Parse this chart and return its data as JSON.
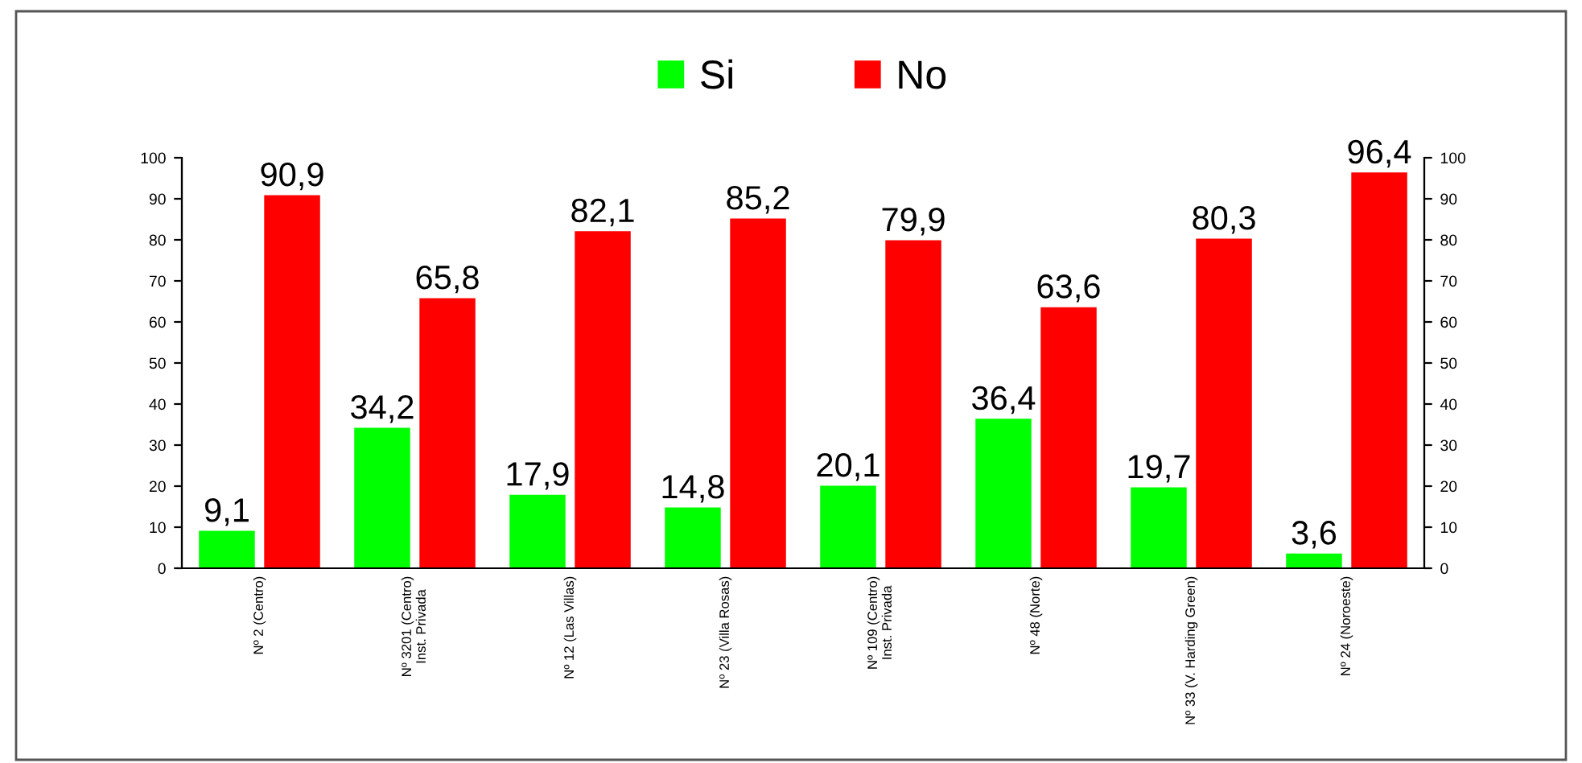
{
  "chart_data": {
    "type": "bar",
    "categories": [
      "Nº 2 (Centro)",
      "Nº 3201 (Centro)\nInst. Privada",
      "Nº 12 (Las Villas)",
      "Nº 23 (Villa Rosas)",
      "Nº 109 (Centro)\nInst. Privada",
      "Nº 48 (Norte)",
      "Nº 33 (V. Harding Green)",
      "Nº 24 (Noroeste)"
    ],
    "series": [
      {
        "name": "Si",
        "color": "#00ff00",
        "values": [
          9.1,
          34.2,
          17.9,
          14.8,
          20.1,
          36.4,
          19.7,
          3.6
        ],
        "value_labels": [
          "9,1",
          "34,2",
          "17,9",
          "14,8",
          "20,1",
          "36,4",
          "19,7",
          "3,6"
        ]
      },
      {
        "name": "No",
        "color": "#ff0000",
        "values": [
          90.9,
          65.8,
          82.1,
          85.2,
          79.9,
          63.6,
          80.3,
          96.4
        ],
        "value_labels": [
          "90,9",
          "65,8",
          "82,1",
          "85,2",
          "79,9",
          "63,6",
          "80,3",
          "96,4"
        ]
      }
    ],
    "ylim": [
      0,
      100
    ],
    "yticks": [
      0,
      10,
      20,
      30,
      40,
      50,
      60,
      70,
      80,
      90,
      100
    ],
    "y2lim": [
      0,
      100
    ],
    "y2ticks": [
      0,
      10,
      20,
      30,
      40,
      50,
      60,
      70,
      80,
      90,
      100
    ],
    "legend": "top",
    "grid": false
  }
}
